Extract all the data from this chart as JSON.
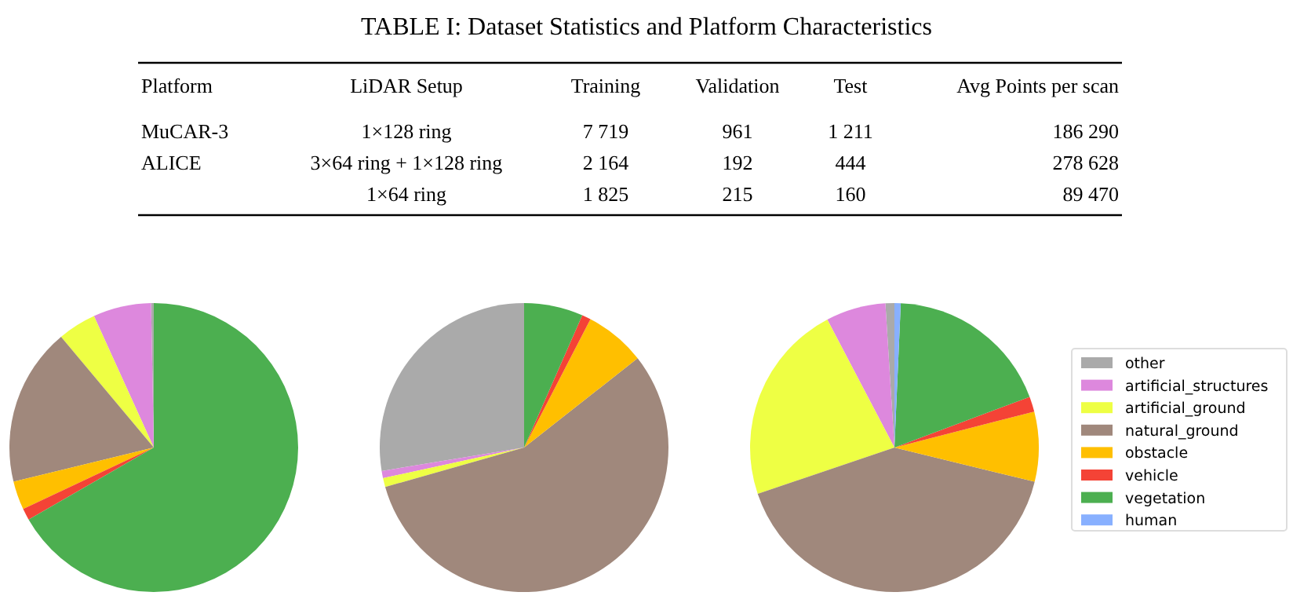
{
  "chart_data": [
    {
      "type": "other",
      "title": "TABLE I: Dataset Statistics and Platform Characteristics",
      "annotations": [
        "Platform",
        "LiDAR Setup",
        "Training",
        "Validation",
        "Test",
        "Avg Points per scan",
        "MuCAR-3",
        "1×128 ring",
        "7 719",
        "961",
        "1 211",
        "186 290",
        "ALICE",
        "3×64 ring + 1×128 ring",
        "2 164",
        "192",
        "444",
        "278 628",
        null,
        "1×64 ring",
        "1 825",
        "215",
        "160",
        "89 470"
      ]
    },
    {
      "type": "pie",
      "categories": [
        null,
        null,
        null,
        null,
        null,
        null,
        null,
        null
      ],
      "values": [
        0.3,
        6.5,
        4.3,
        17.7,
        3.2,
        1.3,
        66.7,
        0
      ],
      "colors": [
        "#aaaaaa",
        "#dd88dd",
        "#eeff44",
        "#a0887c",
        "#ffbf00",
        "#f44336",
        "#4caf50",
        "#88b0ff"
      ]
    },
    {
      "type": "pie",
      "categories": [
        null,
        null,
        null,
        null,
        null,
        null,
        null,
        null
      ],
      "values": [
        27.6,
        0.8,
        1.0,
        56.2,
        6.8,
        1.0,
        6.6,
        0
      ],
      "colors": [
        "#aaaaaa",
        "#dd88dd",
        "#eeff44",
        "#a0887c",
        "#ffbf00",
        "#f44336",
        "#4caf50",
        "#88b0ff"
      ]
    },
    {
      "type": "pie",
      "categories": [
        "other",
        "artificial_structures",
        "artificial_ground",
        "natural_ground",
        "obstacle",
        "vehicle",
        "vegetation",
        "human"
      ],
      "values": [
        1.0,
        6.7,
        22.5,
        41.0,
        7.8,
        1.7,
        18.6,
        0.7
      ],
      "colors": [
        "#aaaaaa",
        "#dd88dd",
        "#eeff44",
        "#a0887c",
        "#ffbf00",
        "#f44336",
        "#4caf50",
        "#88b0ff"
      ],
      "legend": "right"
    }
  ]
}
